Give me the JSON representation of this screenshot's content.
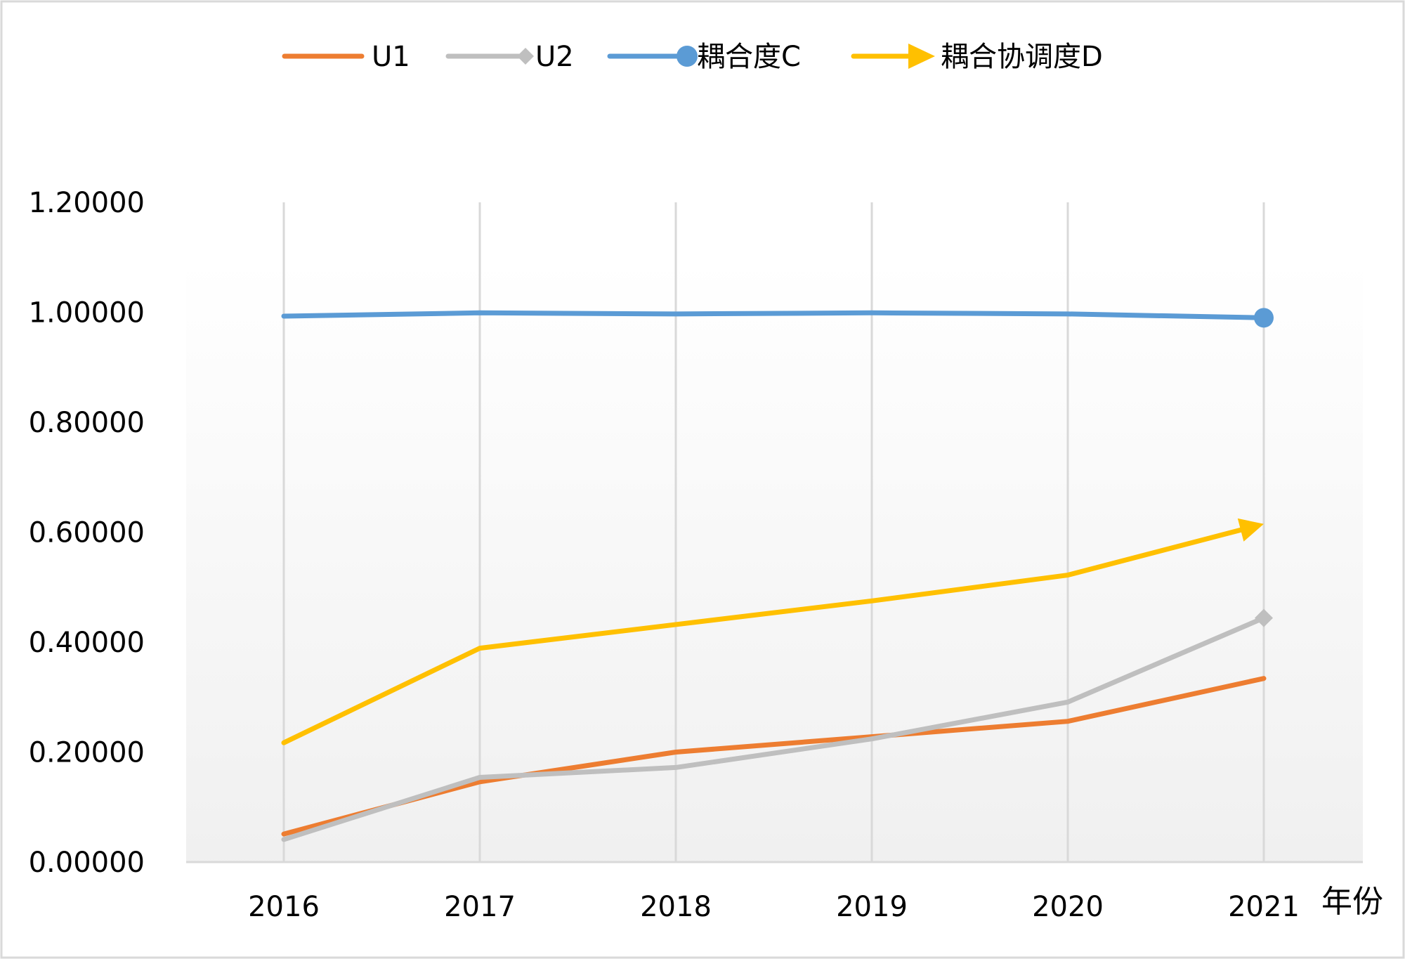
{
  "chart_data": {
    "type": "line",
    "title": "",
    "xlabel": "年份",
    "ylabel": "",
    "categories": [
      "2016",
      "2017",
      "2018",
      "2019",
      "2020",
      "2021"
    ],
    "ylim": [
      0,
      1.2
    ],
    "yticks": [
      "0.00000",
      "0.20000",
      "0.40000",
      "0.60000",
      "0.80000",
      "1.00000",
      "1.20000"
    ],
    "grid": "vertical",
    "legend_position": "top",
    "series": [
      {
        "name": "U1",
        "color": "#ED7D31",
        "marker": "none",
        "values": [
          0.051,
          0.146,
          0.2,
          0.228,
          0.256,
          0.334
        ]
      },
      {
        "name": "U2",
        "color": "#BFBFBF",
        "marker": "diamond",
        "values": [
          0.041,
          0.154,
          0.172,
          0.224,
          0.291,
          0.444
        ]
      },
      {
        "name": "耦合度C",
        "color": "#5B9BD5",
        "marker": "circle",
        "values": [
          0.993,
          0.999,
          0.997,
          0.999,
          0.997,
          0.99
        ]
      },
      {
        "name": "耦合协调度D",
        "color": "#FFC000",
        "marker": "arrow",
        "values": [
          0.217,
          0.389,
          0.432,
          0.475,
          0.522,
          0.615
        ]
      }
    ]
  }
}
